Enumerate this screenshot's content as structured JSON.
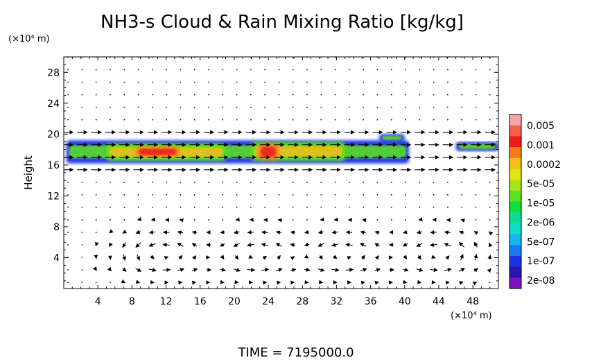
{
  "chart_data": {
    "type": "heatmap",
    "title": "NH3-s Cloud & Rain Mixing Ratio [kg/kg]",
    "xlabel": "",
    "ylabel": "Height",
    "x_unit": "(×10⁴ m)",
    "y_unit": "(×10⁴ m)",
    "xlim": [
      0,
      51
    ],
    "ylim": [
      0,
      30
    ],
    "x_ticks": [
      "4",
      "8",
      "12",
      "16",
      "20",
      "24",
      "28",
      "32",
      "36",
      "40",
      "44",
      "48"
    ],
    "y_ticks": [
      "4",
      "8",
      "12",
      "16",
      "20",
      "24",
      "28"
    ],
    "colorbar": {
      "labels": [
        "0.005",
        "0.001",
        "0.0002",
        "5e-05",
        "1e-05",
        "2e-06",
        "5e-07",
        "1e-07",
        "2e-08"
      ],
      "colors": [
        "#f4a5a8",
        "#f4624a",
        "#ee1c1c",
        "#f47a1c",
        "#f4bc1c",
        "#e0e414",
        "#a8e41c",
        "#5ce41c",
        "#14dc3c",
        "#10dc90",
        "#10dccc",
        "#18b4f0",
        "#1c78f0",
        "#1c30e4",
        "#2814b0",
        "#8014b8"
      ]
    },
    "cloud_layers": [
      {
        "x_start": 0.3,
        "x_end": 40.5,
        "y_bottom": 16.2,
        "y_top": 19.2,
        "level": "low"
      },
      {
        "x_start": 37.0,
        "x_end": 40.0,
        "y_bottom": 19.0,
        "y_top": 20.0,
        "level": "low"
      },
      {
        "x_start": 46.0,
        "x_end": 51.0,
        "y_bottom": 17.8,
        "y_top": 19.0,
        "level": "low"
      },
      {
        "x_start": 5.0,
        "x_end": 19.0,
        "y_bottom": 16.5,
        "y_top": 18.8,
        "level": "medium"
      },
      {
        "x_start": 22.0,
        "x_end": 33.0,
        "y_bottom": 16.5,
        "y_top": 19.0,
        "level": "medium"
      },
      {
        "x_start": 8.5,
        "x_end": 13.5,
        "y_bottom": 17.0,
        "y_top": 18.4,
        "level": "high"
      },
      {
        "x_start": 22.8,
        "x_end": 25.2,
        "y_bottom": 16.6,
        "y_top": 18.8,
        "level": "high"
      }
    ],
    "circulation_cells": [
      {
        "x": 11.5,
        "y": 4.5
      },
      {
        "x": 22.5,
        "y": 4.5
      },
      {
        "x": 33.0,
        "y": 4.5
      },
      {
        "x": 44.0,
        "y": 4.5
      }
    ],
    "annotation": "TIME = 7195000.0"
  }
}
